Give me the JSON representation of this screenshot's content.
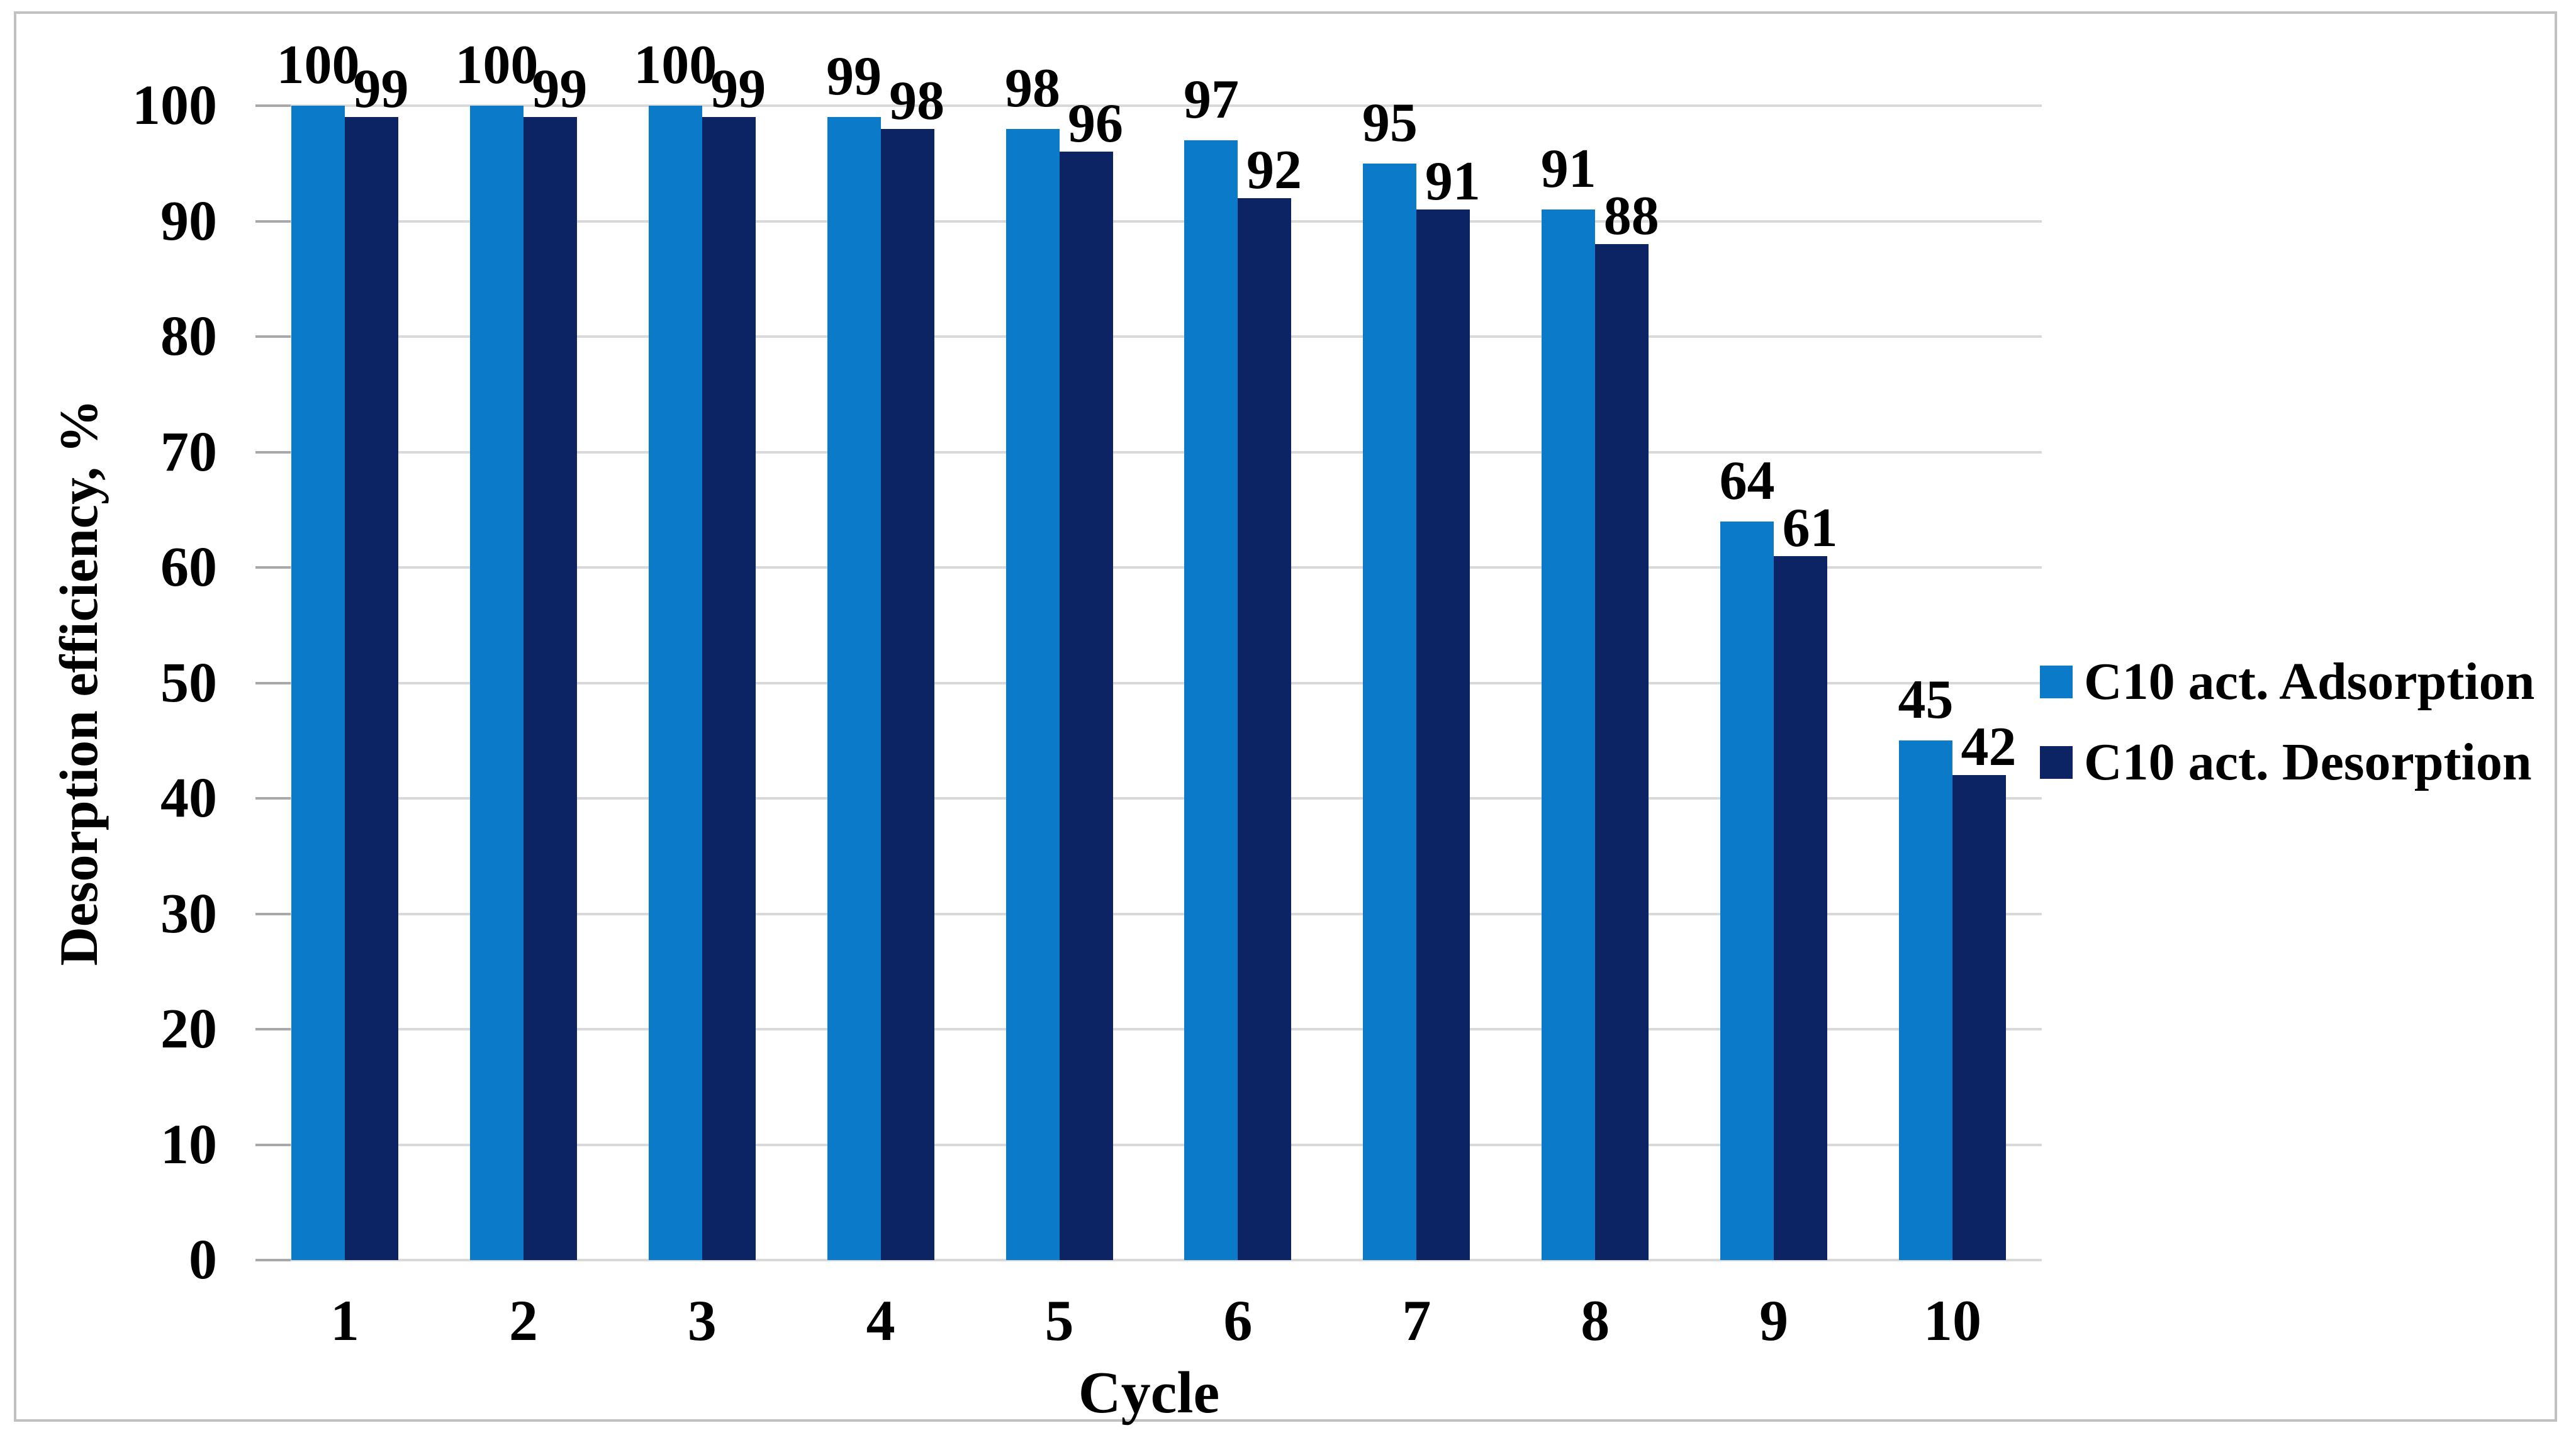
{
  "figure": {
    "border_color": "#c1c1c1",
    "background_color": "#ffffff",
    "text_color": "#000000"
  },
  "chart_data": {
    "type": "bar",
    "title": "",
    "categories": [
      "1",
      "2",
      "3",
      "4",
      "5",
      "6",
      "7",
      "8",
      "9",
      "10"
    ],
    "series": [
      {
        "name": "C10 act. Adsorption",
        "color": "#0b7ac9",
        "values": [
          100,
          100,
          100,
          99,
          98,
          97,
          95,
          91,
          64,
          45
        ]
      },
      {
        "name": "C10 act. Desorption",
        "color": "#0d2464",
        "values": [
          99,
          99,
          99,
          98,
          96,
          92,
          91,
          88,
          61,
          42
        ]
      }
    ],
    "xlabel": "Cycle",
    "ylabel": "Desorption efficiency, %",
    "ylim": [
      0,
      100
    ],
    "yticks": [
      0,
      10,
      20,
      30,
      40,
      50,
      60,
      70,
      80,
      90,
      100
    ],
    "grid": "horizontal gridlines every 10 units",
    "gridline_color": "#d9d9d9",
    "tick_mark_color": "#a8a8a8",
    "legend_position": "right-middle",
    "data_labels": "values shown above each bar"
  }
}
